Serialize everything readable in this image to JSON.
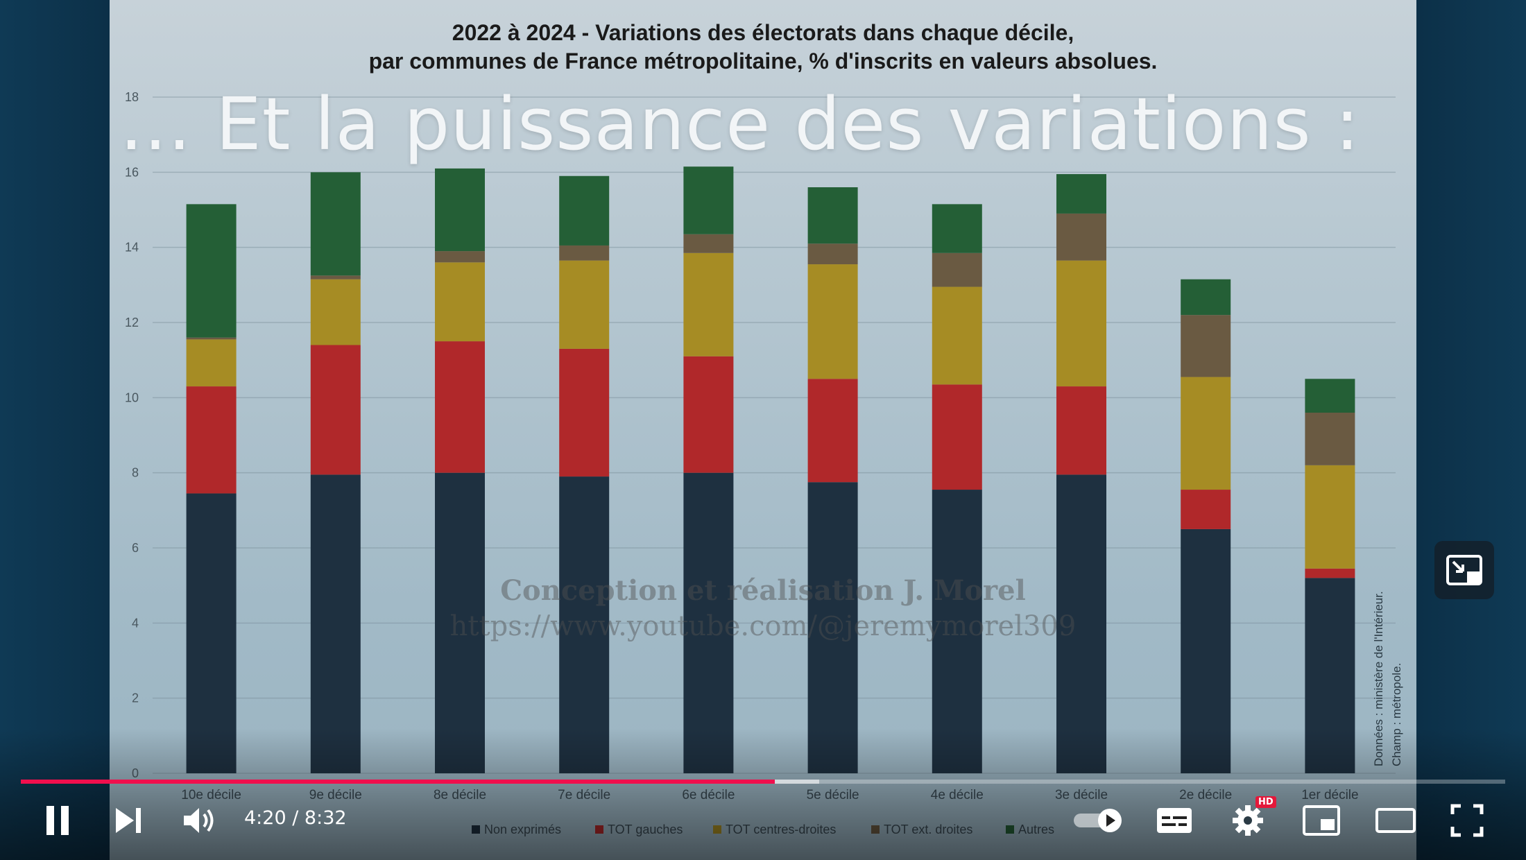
{
  "video": {
    "current_time": "4:20",
    "duration": "8:32",
    "progress_fraction": 0.508,
    "buffer_fraction": 0.538
  },
  "slide": {
    "overlay_title": "… Et la puissance des variations :",
    "watermark_line1": "Conception et réalisation J. Morel",
    "watermark_line2": "https://www.youtube.com/@jeremymorel309",
    "credits_line1": "Données : ministère de l'Intérieur.",
    "credits_line2": "Champ : métropole."
  },
  "icons": {
    "pause": "pause-icon",
    "next": "next-icon",
    "volume": "volume-icon",
    "autoplay": "autoplay-toggle-icon",
    "subtitles": "subtitles-icon",
    "settings": "gear-icon",
    "hd_badge": "HD",
    "miniplayer": "miniplayer-icon",
    "theater": "theater-icon",
    "fullscreen": "fullscreen-icon",
    "mini_overlay": "exit-miniplayer-icon"
  },
  "colors": {
    "progress_played": "#f00f4d",
    "non_exprimes": "#1e3040",
    "gauches": "#b0282a",
    "centres_droites": "#a68c24",
    "ext_droites": "#6a5a42",
    "autres": "#245f36"
  },
  "chart_data": {
    "type": "bar",
    "stacked": true,
    "title": "2022 à 2024 - Variations des électorats dans chaque décile,",
    "subtitle": "par communes de France métropolitaine, % d'inscrits en valeurs absolues.",
    "xlabel": "",
    "ylabel": "",
    "ylim": [
      0,
      18
    ],
    "yticks": [
      0,
      2,
      4,
      6,
      8,
      10,
      12,
      14,
      16,
      18
    ],
    "grid": true,
    "legend_position": "bottom",
    "categories": [
      "10e décile",
      "9e décile",
      "8e décile",
      "7e décile",
      "6e décile",
      "5e décile",
      "4e décile",
      "3e décile",
      "2e décile",
      "1er décile"
    ],
    "series": [
      {
        "name": "Non exprimés",
        "color": "#1e3040",
        "values": [
          7.45,
          7.95,
          8.0,
          7.9,
          8.0,
          7.75,
          7.55,
          7.95,
          6.5,
          5.2
        ]
      },
      {
        "name": "TOT gauches",
        "color": "#b0282a",
        "values": [
          2.85,
          3.45,
          3.5,
          3.4,
          3.1,
          2.75,
          2.8,
          2.35,
          1.05,
          0.25
        ]
      },
      {
        "name": "TOT centres-droites",
        "color": "#a68c24",
        "values": [
          1.25,
          1.75,
          2.1,
          2.35,
          2.75,
          3.05,
          2.6,
          3.35,
          3.0,
          2.75
        ]
      },
      {
        "name": "TOT ext. droites",
        "color": "#6a5a42",
        "values": [
          0.05,
          0.1,
          0.3,
          0.4,
          0.5,
          0.55,
          0.9,
          1.25,
          1.65,
          1.4
        ]
      },
      {
        "name": "Autres",
        "color": "#245f36",
        "values": [
          3.55,
          2.75,
          2.2,
          1.85,
          1.8,
          1.5,
          1.3,
          1.05,
          0.95,
          0.9
        ]
      }
    ]
  }
}
